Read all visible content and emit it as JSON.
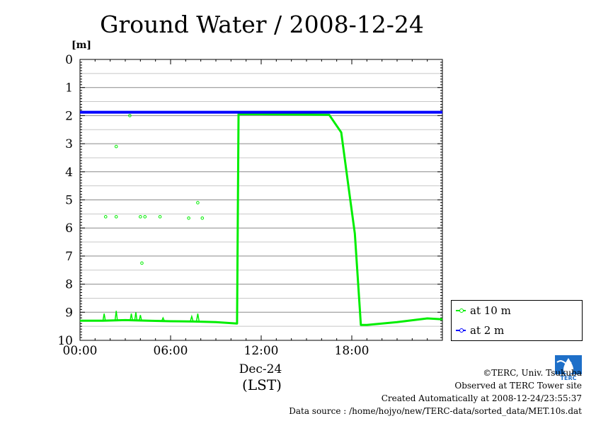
{
  "chart_data": {
    "type": "line",
    "title": "Ground Water / 2008-12-24",
    "ylabel_unit": "[m]",
    "y_inverted": true,
    "ylim": [
      0,
      10
    ],
    "yticks": [
      "0",
      "1",
      "2",
      "3",
      "4",
      "5",
      "6",
      "7",
      "8",
      "9",
      "10"
    ],
    "xlim": [
      0,
      24
    ],
    "xticks": [
      "00:00",
      "06:00",
      "12:00",
      "18:00"
    ],
    "xticks_hours": [
      0,
      6,
      12,
      18
    ],
    "xdate_label": "Dec-24",
    "xlabel": "(LST)",
    "grid": true,
    "legend_placement": "right-bottom",
    "series": [
      {
        "name": "at 10 m",
        "color": "#00ee00",
        "x": [
          0,
          1.5,
          3,
          4.5,
          6,
          7.5,
          9,
          10.4,
          10.5,
          10.8,
          12,
          14,
          16.5,
          17.3,
          17.8,
          18.2,
          18.4,
          18.6,
          19,
          21,
          23,
          24
        ],
        "y": [
          9.3,
          9.3,
          9.28,
          9.3,
          9.32,
          9.33,
          9.35,
          9.4,
          1.95,
          1.95,
          1.95,
          1.96,
          1.97,
          2.6,
          4.6,
          6.2,
          7.8,
          9.45,
          9.45,
          9.35,
          9.22,
          9.25
        ]
      },
      {
        "name": "at 2 m",
        "color": "#0000ff",
        "x": [
          0,
          24
        ],
        "y": [
          1.88,
          1.88
        ]
      }
    ],
    "outliers_10m": [
      {
        "x": 1.7,
        "y": 5.6
      },
      {
        "x": 2.4,
        "y": 5.6
      },
      {
        "x": 2.4,
        "y": 3.1
      },
      {
        "x": 3.3,
        "y": 2.0
      },
      {
        "x": 4.0,
        "y": 5.6
      },
      {
        "x": 4.3,
        "y": 5.6
      },
      {
        "x": 5.3,
        "y": 5.6
      },
      {
        "x": 4.1,
        "y": 7.25
      },
      {
        "x": 7.2,
        "y": 5.65
      },
      {
        "x": 7.8,
        "y": 5.1
      },
      {
        "x": 8.1,
        "y": 5.65
      }
    ],
    "spikes_10m": [
      {
        "x": 1.6,
        "y": 9.05
      },
      {
        "x": 2.4,
        "y": 8.95
      },
      {
        "x": 3.4,
        "y": 9.05
      },
      {
        "x": 3.7,
        "y": 9.0
      },
      {
        "x": 4.0,
        "y": 9.1
      },
      {
        "x": 5.5,
        "y": 9.2
      },
      {
        "x": 7.4,
        "y": 9.15
      },
      {
        "x": 7.8,
        "y": 9.05
      }
    ]
  },
  "legend": {
    "items": [
      {
        "label": "at 10 m",
        "color": "#00ee00"
      },
      {
        "label": "at 2 m",
        "color": "#0000ff"
      }
    ]
  },
  "footer": {
    "copyright": "©TERC, Univ. Tsukuba",
    "observed": "Observed at TERC Tower site",
    "created": "Created Automatically at 2008-12-24/23:55:37",
    "source": "Data source : /home/hojyo/new/TERC-data/sorted_data/MET.10s.dat"
  },
  "logo": {
    "text": "TERC",
    "color": "#1e6fc8"
  }
}
